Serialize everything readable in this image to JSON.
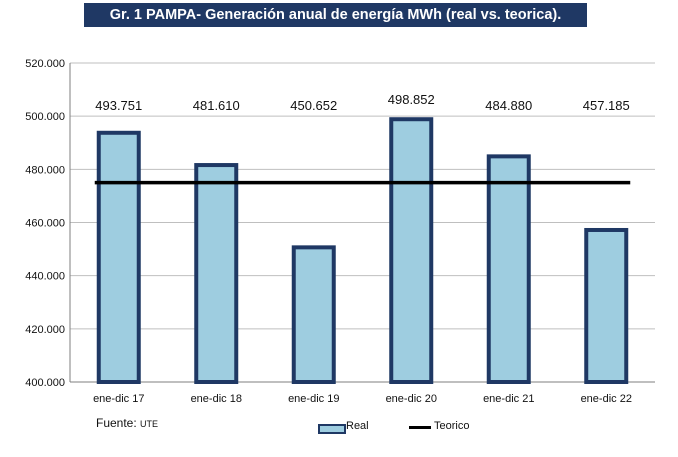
{
  "chart_data": {
    "type": "bar",
    "title": "Gr. 1 PAMPA- Generación anual de energía MWh (real vs. teorica).",
    "categories": [
      "ene-dic 17",
      "ene-dic 18",
      "ene-dic 19",
      "ene-dic 20",
      "ene-dic 21",
      "ene-dic 22"
    ],
    "series": [
      {
        "name": "Real",
        "type": "bar",
        "values": [
          493751,
          481610,
          450652,
          498852,
          484880,
          457185
        ],
        "labels": [
          "493.751",
          "481.610",
          "450.652",
          "498.852",
          "484.880",
          "457.185"
        ]
      },
      {
        "name": "Teorico",
        "type": "line",
        "values": [
          475000,
          475000,
          475000,
          475000,
          475000,
          475000
        ]
      }
    ],
    "ylim": [
      400000,
      520000
    ],
    "yticks": [
      400000,
      420000,
      440000,
      460000,
      480000,
      500000,
      520000
    ],
    "ytick_labels": [
      "400.000",
      "420.000",
      "440.000",
      "460.000",
      "480.000",
      "500.000",
      "520.000"
    ],
    "xlabel": "",
    "ylabel": "",
    "grid": true,
    "legend_position": "bottom-center",
    "colors": {
      "bar_fill": "#9ecde0",
      "bar_edge": "#1f3864",
      "line": "#000000",
      "grid": "#bfbfbf",
      "title_bg": "#1f3864"
    }
  },
  "source": {
    "label": "Fuente:",
    "value": "UTE"
  }
}
